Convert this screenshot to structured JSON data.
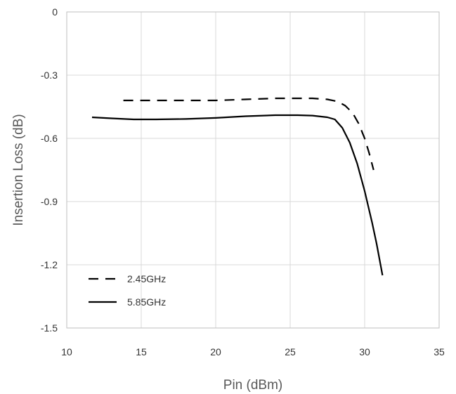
{
  "chart_data": {
    "type": "line",
    "xlabel": "Pin (dBm)",
    "ylabel": "Insertion Loss (dB)",
    "xlim": [
      10,
      35
    ],
    "ylim": [
      -1.5,
      0
    ],
    "x_ticks": [
      "10",
      "15",
      "20",
      "25",
      "30",
      "35"
    ],
    "y_ticks": [
      "0",
      "-0.3",
      "-0.6",
      "-0.9",
      "-1.2",
      "-1.5"
    ],
    "grid": true,
    "legend_position": "bottom-left",
    "series": [
      {
        "name": "2.45GHz",
        "style": "dashed",
        "color": "#000000",
        "x": [
          13.8,
          16,
          18,
          20,
          22,
          24,
          25.5,
          26.5,
          27.5,
          28.2,
          28.7,
          29.2,
          29.6,
          30.0,
          30.3,
          30.6
        ],
        "y": [
          -0.42,
          -0.42,
          -0.42,
          -0.42,
          -0.415,
          -0.41,
          -0.41,
          -0.41,
          -0.415,
          -0.425,
          -0.445,
          -0.48,
          -0.53,
          -0.6,
          -0.67,
          -0.75
        ]
      },
      {
        "name": "5.85GHz",
        "style": "solid",
        "color": "#000000",
        "x": [
          11.7,
          13,
          14.5,
          16,
          18,
          20,
          22,
          24,
          25.5,
          26.5,
          27.5,
          28.0,
          28.5,
          29.0,
          29.5,
          30.0,
          30.5,
          30.8,
          31.2
        ],
        "y": [
          -0.5,
          -0.505,
          -0.51,
          -0.51,
          -0.508,
          -0.503,
          -0.495,
          -0.49,
          -0.49,
          -0.492,
          -0.5,
          -0.51,
          -0.55,
          -0.62,
          -0.72,
          -0.85,
          -1.0,
          -1.1,
          -1.25
        ]
      }
    ]
  }
}
